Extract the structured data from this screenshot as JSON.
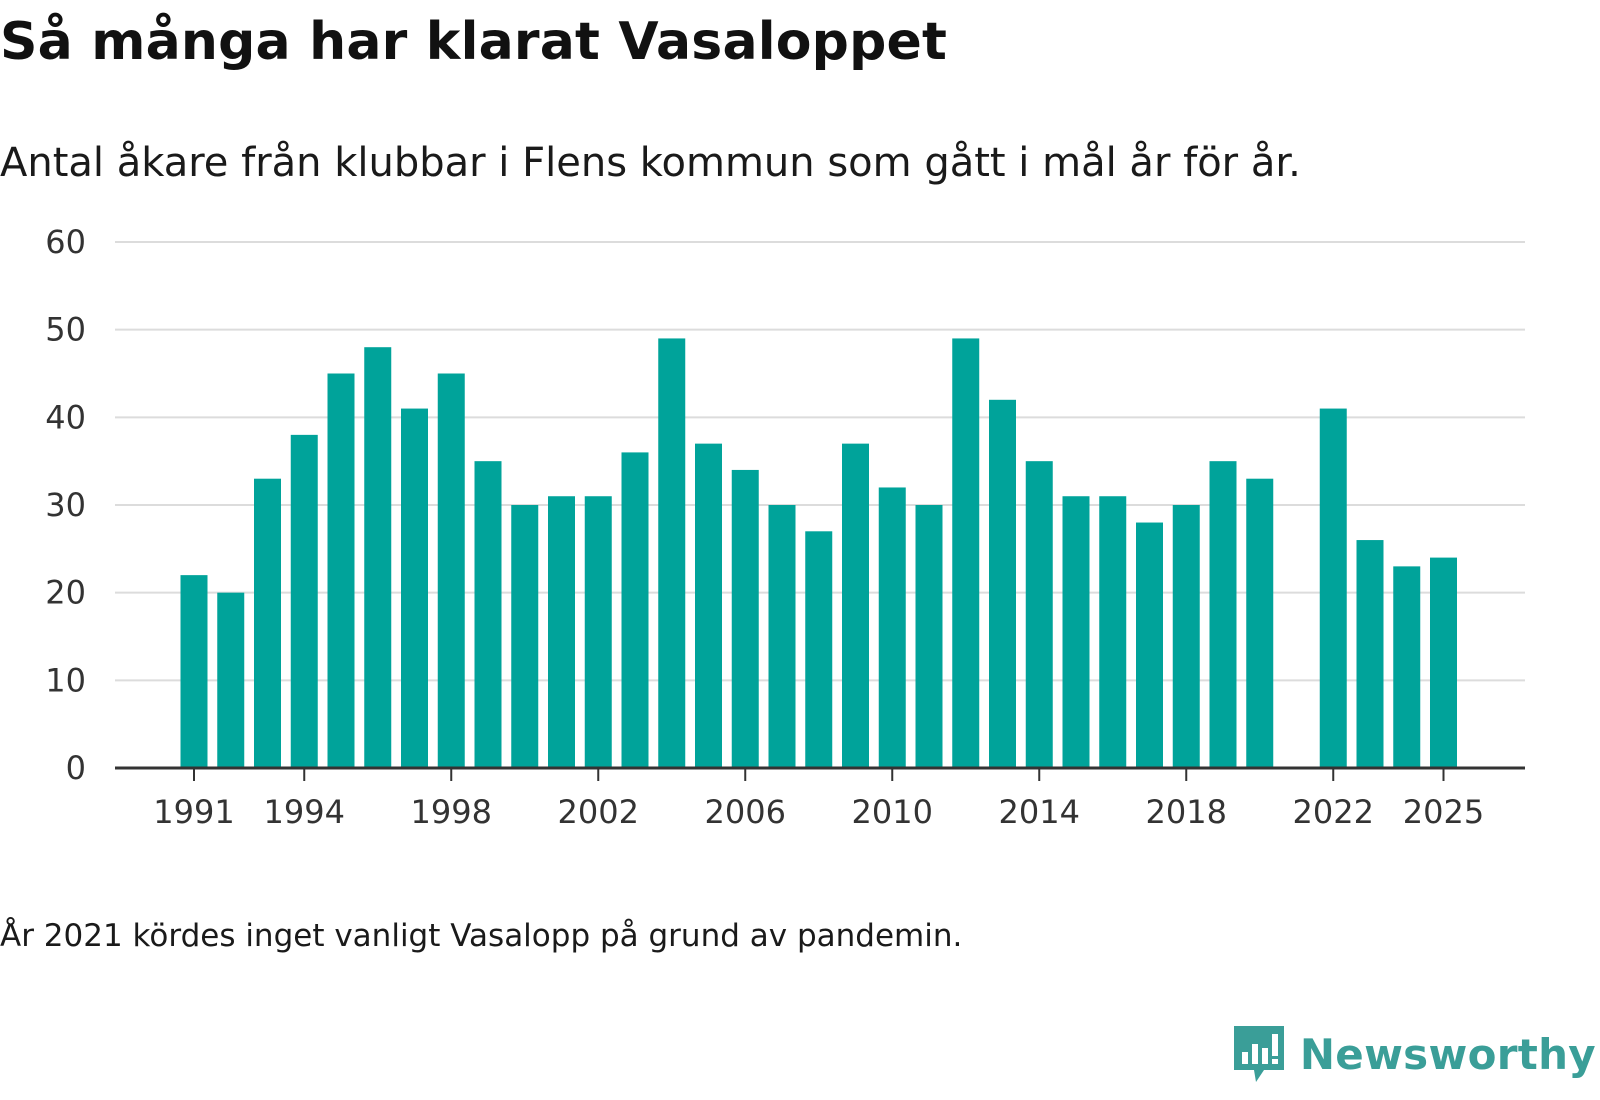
{
  "title": "Så många har klarat Vasaloppet",
  "subtitle": "Antal åkare från klubbar i Flens kommun som gått i mål år för år.",
  "note": "År 2021 kördes inget vanligt Vasalopp på grund av pandemin.",
  "brand": {
    "name": "Newsworthy",
    "icon": "newsworthy-logo-icon",
    "color": "#3a9e98"
  },
  "chart_data": {
    "type": "bar",
    "bar_color": "#00a39a",
    "categories": [
      1991,
      1992,
      1993,
      1994,
      1995,
      1996,
      1997,
      1998,
      1999,
      2000,
      2001,
      2002,
      2003,
      2004,
      2005,
      2006,
      2007,
      2008,
      2009,
      2010,
      2011,
      2012,
      2013,
      2014,
      2015,
      2016,
      2017,
      2018,
      2019,
      2020,
      2021,
      2022,
      2023,
      2024,
      2025
    ],
    "values": [
      22,
      20,
      33,
      38,
      45,
      48,
      41,
      45,
      35,
      30,
      31,
      31,
      36,
      49,
      37,
      34,
      30,
      27,
      37,
      32,
      30,
      49,
      42,
      35,
      31,
      31,
      28,
      30,
      35,
      33,
      null,
      41,
      26,
      23,
      24
    ],
    "ylim": [
      0,
      60
    ],
    "yticks": [
      0,
      10,
      20,
      30,
      40,
      50,
      60
    ],
    "xticks": [
      1991,
      1994,
      1998,
      2002,
      2006,
      2010,
      2014,
      2018,
      2022,
      2025
    ],
    "xlabel": "",
    "ylabel": "",
    "grid": true
  }
}
